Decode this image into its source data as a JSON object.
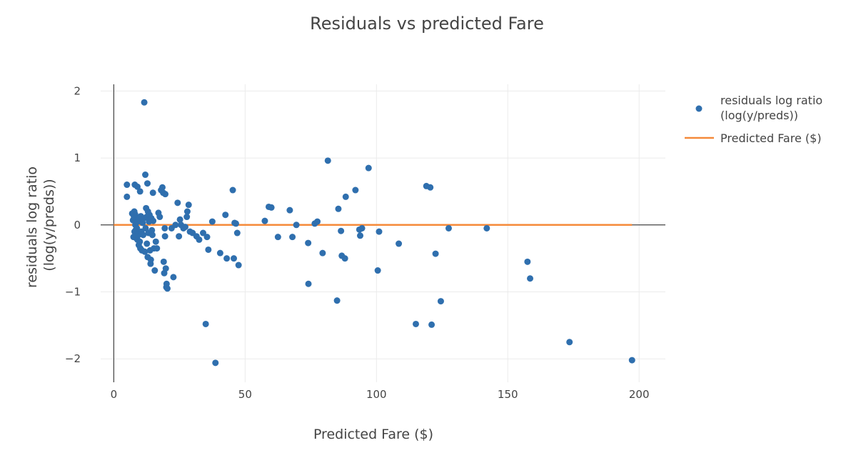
{
  "chart_data": {
    "type": "scatter",
    "title": "Residuals vs predicted Fare",
    "xlabel": "Predicted Fare ($)",
    "ylabel_lines": [
      "residuals log ratio",
      "(log(y/preds))"
    ],
    "xlim": [
      -5,
      210
    ],
    "ylim": [
      -2.35,
      2.1
    ],
    "x_ticks": [
      0,
      50,
      100,
      150,
      200
    ],
    "x_tick_labels": [
      "0",
      "50",
      "100",
      "150",
      "200"
    ],
    "y_ticks": [
      -2,
      -1,
      0,
      1,
      2
    ],
    "y_tick_labels": [
      "−2",
      "−1",
      "0",
      "1",
      "2"
    ],
    "grid": true,
    "legend_position": "top-right",
    "colors": {
      "scatter": "#2f6fae",
      "line": "#f58a3a"
    },
    "legend": [
      {
        "label_lines": [
          "residuals log ratio",
          "(log(y/preds))"
        ],
        "kind": "marker"
      },
      {
        "label_lines": [
          "Predicted Fare ($)"
        ],
        "kind": "line"
      }
    ],
    "line_series": {
      "name": "Predicted Fare ($)",
      "x": [
        0,
        197.3
      ],
      "y": [
        0,
        0
      ]
    },
    "scatter_series": {
      "name": "residuals log ratio (log(y/preds))",
      "points": [
        [
          5,
          0.6
        ],
        [
          5,
          0.42
        ],
        [
          7,
          0.17
        ],
        [
          7.3,
          0.07
        ],
        [
          7.5,
          -0.18
        ],
        [
          7.7,
          0.12
        ],
        [
          7.8,
          0.2
        ],
        [
          7.9,
          -0.1
        ],
        [
          8,
          0.6
        ],
        [
          8.1,
          0.16
        ],
        [
          8.2,
          0.0
        ],
        [
          8.3,
          -0.08
        ],
        [
          8.5,
          0.1
        ],
        [
          8.6,
          -0.2
        ],
        [
          8.7,
          0.07
        ],
        [
          8.8,
          -0.05
        ],
        [
          9,
          0.57
        ],
        [
          9,
          -0.22
        ],
        [
          9.2,
          0.05
        ],
        [
          9.4,
          -0.15
        ],
        [
          9.5,
          -0.3
        ],
        [
          9.7,
          0.08
        ],
        [
          9.9,
          -0.25
        ],
        [
          10,
          0.5
        ],
        [
          10.1,
          -0.35
        ],
        [
          10.3,
          0.13
        ],
        [
          10.5,
          -0.1
        ],
        [
          10.7,
          -0.38
        ],
        [
          11,
          0.03
        ],
        [
          11.2,
          -0.15
        ],
        [
          11.4,
          0.1
        ],
        [
          11.6,
          1.83
        ],
        [
          11.8,
          -0.4
        ],
        [
          12,
          0.75
        ],
        [
          12.1,
          -0.05
        ],
        [
          12.3,
          0.25
        ],
        [
          12.5,
          0.12
        ],
        [
          12.6,
          -0.28
        ],
        [
          12.8,
          0.62
        ],
        [
          12.9,
          -0.48
        ],
        [
          13,
          0.2
        ],
        [
          13.2,
          -0.12
        ],
        [
          13.4,
          0.05
        ],
        [
          13.6,
          0.15
        ],
        [
          13.8,
          -0.38
        ],
        [
          14,
          -0.58
        ],
        [
          14.1,
          -0.52
        ],
        [
          14.3,
          0.1
        ],
        [
          14.5,
          -0.08
        ],
        [
          14.7,
          -0.15
        ],
        [
          14.9,
          0.48
        ],
        [
          15,
          0.06
        ],
        [
          15.3,
          -0.35
        ],
        [
          15.6,
          -0.68
        ],
        [
          16,
          -0.25
        ],
        [
          16.4,
          -0.35
        ],
        [
          17,
          0.18
        ],
        [
          17.5,
          0.12
        ],
        [
          18,
          0.52
        ],
        [
          18.5,
          0.56
        ],
        [
          18.8,
          0.48
        ],
        [
          19,
          -0.55
        ],
        [
          19.2,
          -0.72
        ],
        [
          19.4,
          -0.05
        ],
        [
          19.5,
          -0.17
        ],
        [
          19.6,
          0.46
        ],
        [
          19.8,
          -0.65
        ],
        [
          20,
          -0.93
        ],
        [
          20.1,
          -0.88
        ],
        [
          20.4,
          -0.95
        ],
        [
          22,
          -0.05
        ],
        [
          22.7,
          -0.78
        ],
        [
          23.5,
          0.0
        ],
        [
          24.3,
          0.33
        ],
        [
          24.8,
          -0.17
        ],
        [
          25.2,
          0.08
        ],
        [
          25.6,
          0.0
        ],
        [
          26.5,
          -0.05
        ],
        [
          27.2,
          -0.03
        ],
        [
          27.8,
          0.12
        ],
        [
          28,
          0.2
        ],
        [
          28.5,
          0.3
        ],
        [
          29,
          -0.1
        ],
        [
          30,
          -0.12
        ],
        [
          31.5,
          -0.17
        ],
        [
          32.5,
          -0.22
        ],
        [
          34,
          -0.12
        ],
        [
          35,
          -1.48
        ],
        [
          35.5,
          -0.18
        ],
        [
          36,
          -0.37
        ],
        [
          37.5,
          0.05
        ],
        [
          38.7,
          -2.06
        ],
        [
          40.5,
          -0.42
        ],
        [
          42.5,
          0.15
        ],
        [
          43,
          -0.5
        ],
        [
          45.3,
          0.52
        ],
        [
          45.7,
          -0.5
        ],
        [
          46,
          0.03
        ],
        [
          46.5,
          0.02
        ],
        [
          47,
          -0.12
        ],
        [
          47.5,
          -0.6
        ],
        [
          57.5,
          0.06
        ],
        [
          59,
          0.27
        ],
        [
          60,
          0.26
        ],
        [
          62.5,
          -0.18
        ],
        [
          67,
          0.22
        ],
        [
          68,
          -0.18
        ],
        [
          69.5,
          0.0
        ],
        [
          74,
          -0.27
        ],
        [
          74.1,
          -0.88
        ],
        [
          76.5,
          0.02
        ],
        [
          77.5,
          0.05
        ],
        [
          79.5,
          -0.42
        ],
        [
          81.5,
          0.96
        ],
        [
          85,
          -1.13
        ],
        [
          85.5,
          0.24
        ],
        [
          86.5,
          -0.09
        ],
        [
          86.8,
          -0.46
        ],
        [
          88,
          -0.5
        ],
        [
          88.3,
          0.42
        ],
        [
          92,
          0.52
        ],
        [
          93.5,
          -0.07
        ],
        [
          93.8,
          -0.16
        ],
        [
          94.5,
          -0.05
        ],
        [
          97,
          0.85
        ],
        [
          100.5,
          -0.68
        ],
        [
          101,
          -0.1
        ],
        [
          108.5,
          -0.28
        ],
        [
          115,
          -1.48
        ],
        [
          119,
          0.58
        ],
        [
          120.5,
          0.56
        ],
        [
          121,
          -1.49
        ],
        [
          122.5,
          -0.43
        ],
        [
          124.5,
          -1.14
        ],
        [
          127.5,
          -0.05
        ],
        [
          142,
          -0.05
        ],
        [
          157.5,
          -0.55
        ],
        [
          158.5,
          -0.8
        ],
        [
          173.5,
          -1.75
        ],
        [
          197.3,
          -2.02
        ]
      ]
    }
  }
}
